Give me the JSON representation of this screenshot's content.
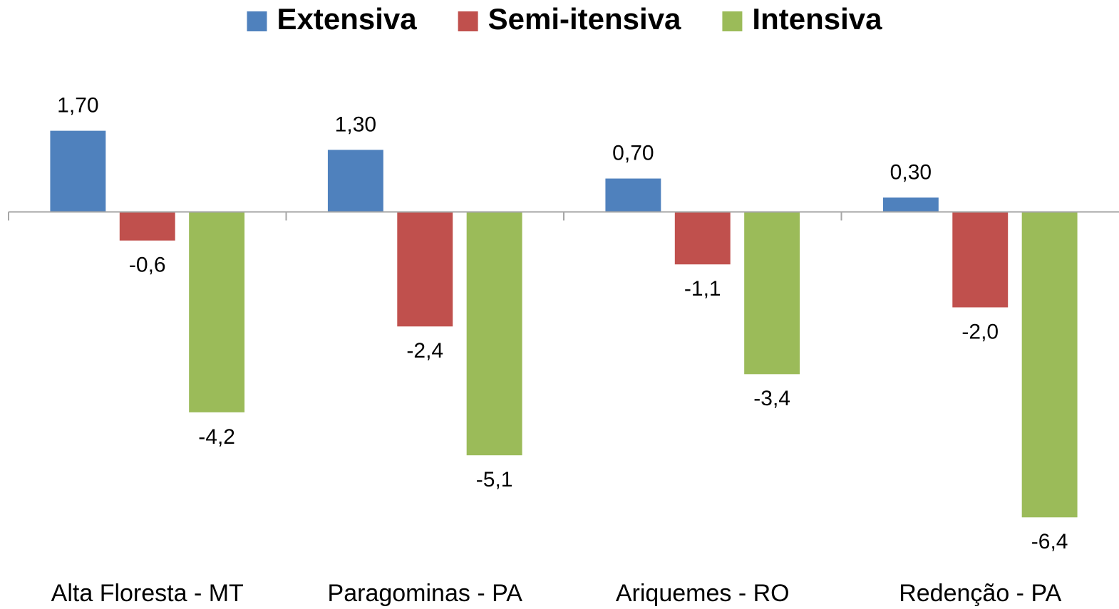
{
  "chart_data": {
    "type": "bar",
    "categories": [
      "Alta Floresta - MT",
      "Paragominas - PA",
      "Ariquemes - RO",
      "Redenção - PA"
    ],
    "series": [
      {
        "name": "Extensiva",
        "color": "#4f81bd",
        "values": [
          1.7,
          1.3,
          0.7,
          0.3
        ],
        "value_labels": [
          "1,70",
          "1,30",
          "0,70",
          "0,30"
        ]
      },
      {
        "name": "Semi-itensiva",
        "color": "#c0504d",
        "values": [
          -0.6,
          -2.4,
          -1.1,
          -2.0
        ],
        "value_labels": [
          "-0,6",
          "-2,4",
          "-1,1",
          "-2,0"
        ]
      },
      {
        "name": "Intensiva",
        "color": "#9bbb59",
        "values": [
          -4.2,
          -5.1,
          -3.4,
          -6.4
        ],
        "value_labels": [
          "-4,2",
          "-5,1",
          "-3,4",
          "-6,4"
        ]
      }
    ],
    "ylim": [
      -7.5,
      2.5
    ],
    "legend": "top"
  }
}
